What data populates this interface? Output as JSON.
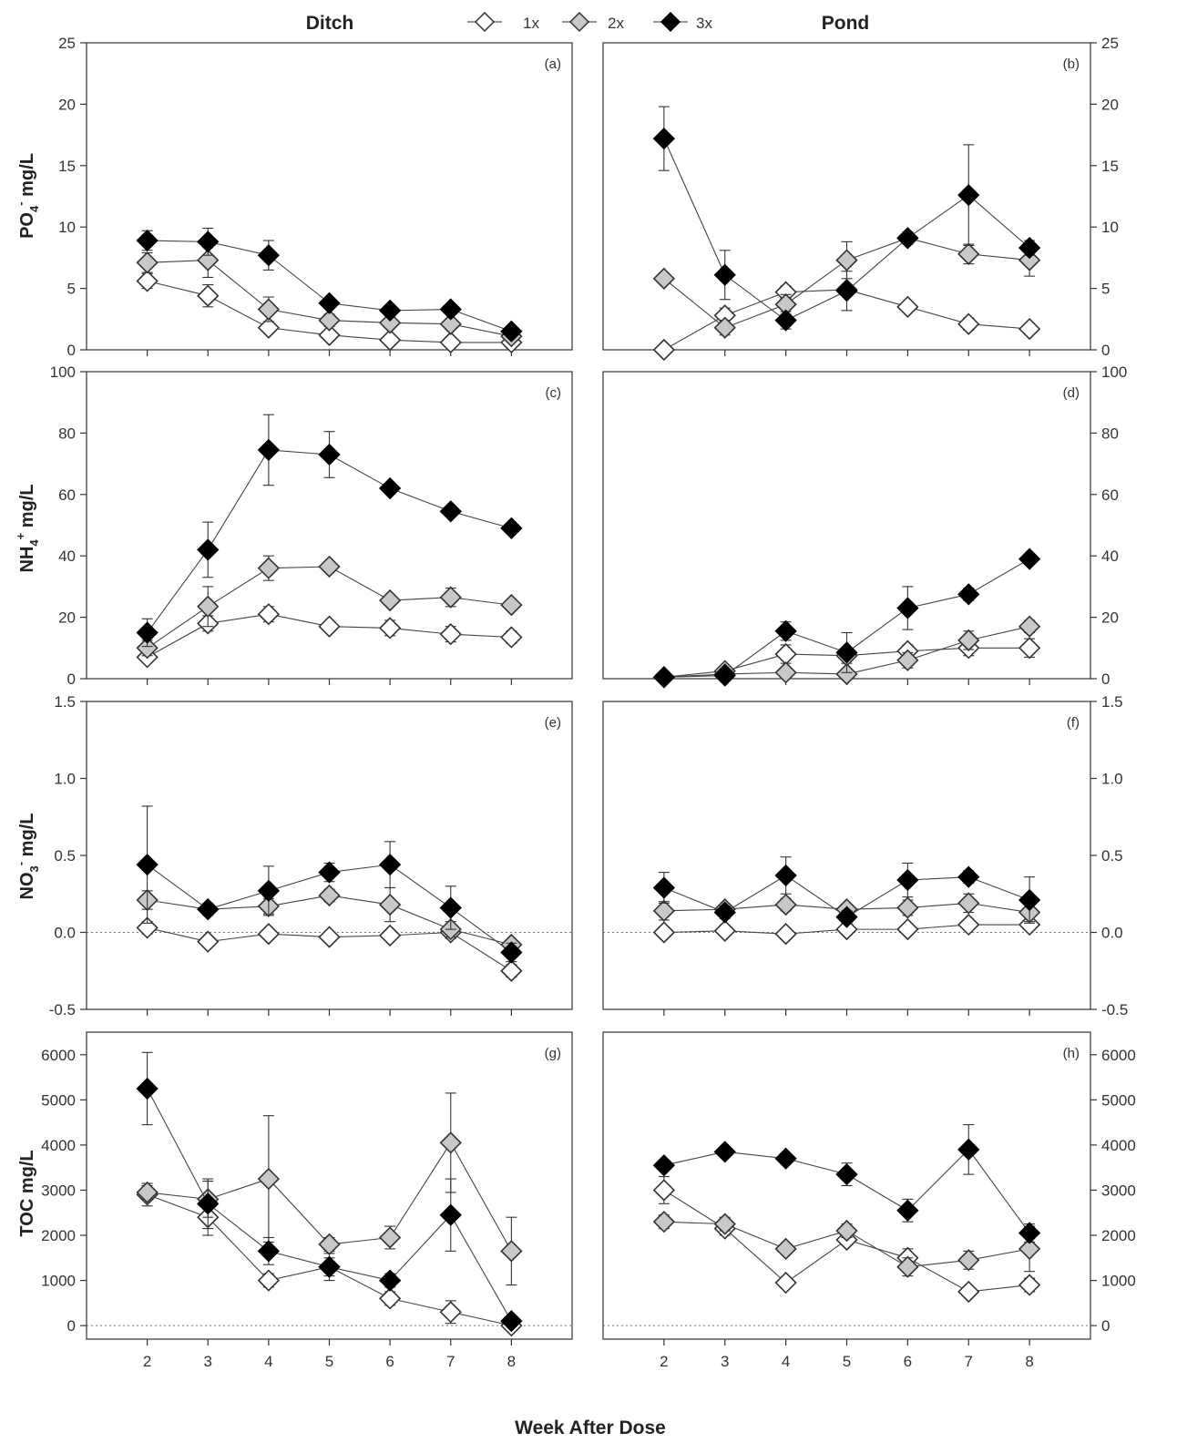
{
  "figure": {
    "titles": {
      "left": "Ditch",
      "right": "Pond"
    },
    "x_label": "Week After Dose",
    "legend": [
      {
        "label": "1x",
        "fill": "#ffffff"
      },
      {
        "label": "2x",
        "fill": "#c8c8c8"
      },
      {
        "label": "3x",
        "fill": "#000000"
      }
    ],
    "row_labels": [
      {
        "base": "PO",
        "sub": "4",
        "sup": "-",
        "unit": " mg/L"
      },
      {
        "base": "NH",
        "sub": "4",
        "sup": "+",
        "unit": " mg/L"
      },
      {
        "base": "NO",
        "sub": "3",
        "sup": "-",
        "unit": " mg/L"
      },
      {
        "base": "TOC",
        "sub": "",
        "sup": "",
        "unit": " mg/L"
      }
    ]
  },
  "chart_data": [
    {
      "type": "line",
      "panel": "(a)",
      "column": "Ditch",
      "x": [
        2,
        3,
        4,
        5,
        6,
        7,
        8
      ],
      "xlim": [
        1,
        9
      ],
      "ylim": [
        0,
        25
      ],
      "yticks": [
        "0",
        "5",
        "10",
        "15",
        "20",
        "25"
      ],
      "ytick_values": [
        0,
        5,
        10,
        15,
        20,
        25
      ],
      "series": [
        {
          "name": "1x",
          "values": [
            5.6,
            4.4,
            1.8,
            1.2,
            0.8,
            0.6,
            0.6
          ],
          "err": [
            0.6,
            0.9,
            0.4,
            0.3,
            0.2,
            0.2,
            0.2
          ]
        },
        {
          "name": "2x",
          "values": [
            7.1,
            7.3,
            3.3,
            2.4,
            2.2,
            2.1,
            1.1
          ],
          "err": [
            0.8,
            1.4,
            1.0,
            0.5,
            0.4,
            0.4,
            0.3
          ]
        },
        {
          "name": "3x",
          "values": [
            8.9,
            8.8,
            7.7,
            3.8,
            3.2,
            3.3,
            1.5
          ],
          "err": [
            0.8,
            1.1,
            1.2,
            0.4,
            0.4,
            0.4,
            0.3
          ]
        }
      ]
    },
    {
      "type": "line",
      "panel": "(b)",
      "column": "Pond",
      "x": [
        2,
        3,
        4,
        5,
        6,
        7,
        8
      ],
      "xlim": [
        1,
        9
      ],
      "ylim": [
        0,
        25
      ],
      "yticks": [
        "0",
        "5",
        "10",
        "15",
        "20",
        "25"
      ],
      "ytick_values": [
        0,
        5,
        10,
        15,
        20,
        25
      ],
      "series": [
        {
          "name": "1x",
          "values": [
            0.0,
            2.8,
            4.7,
            4.9,
            3.5,
            2.1,
            1.7
          ],
          "err": [
            0.2,
            0.6,
            0.5,
            0.4,
            0.4,
            0.5,
            0.3
          ]
        },
        {
          "name": "2x",
          "values": [
            5.8,
            1.8,
            3.7,
            7.3,
            9.1,
            7.8,
            7.3
          ],
          "err": [
            0.4,
            0.6,
            0.8,
            1.5,
            0.5,
            0.8,
            1.3
          ]
        },
        {
          "name": "3x",
          "values": [
            17.2,
            6.1,
            2.4,
            4.8,
            9.1,
            12.6,
            8.3
          ],
          "err": [
            2.6,
            2.0,
            0.7,
            1.6,
            0.4,
            4.1,
            0.6
          ]
        }
      ]
    },
    {
      "type": "line",
      "panel": "(c)",
      "column": "Ditch",
      "x": [
        2,
        3,
        4,
        5,
        6,
        7,
        8
      ],
      "xlim": [
        1,
        9
      ],
      "ylim": [
        0,
        100
      ],
      "yticks": [
        "0",
        "20",
        "40",
        "60",
        "80",
        "100"
      ],
      "ytick_values": [
        0,
        20,
        40,
        60,
        80,
        100
      ],
      "series": [
        {
          "name": "1x",
          "values": [
            7,
            18,
            21,
            17,
            16.5,
            14.5,
            13.5
          ],
          "err": [
            1.5,
            2.5,
            2.5,
            1.5,
            2.5,
            2.5,
            2.0
          ]
        },
        {
          "name": "2x",
          "values": [
            10,
            23.5,
            36,
            36.5,
            25.5,
            26.5,
            24
          ],
          "err": [
            2.5,
            6.5,
            4,
            1.5,
            1.5,
            3.0,
            1.5
          ]
        },
        {
          "name": "3x",
          "values": [
            15,
            42,
            74.5,
            73,
            62,
            54.5,
            49
          ],
          "err": [
            4.5,
            9.0,
            11.5,
            7.5,
            1.5,
            1.5,
            1.5
          ]
        }
      ]
    },
    {
      "type": "line",
      "panel": "(d)",
      "column": "Pond",
      "x": [
        2,
        3,
        4,
        5,
        6,
        7,
        8
      ],
      "xlim": [
        1,
        9
      ],
      "ylim": [
        0,
        100
      ],
      "yticks": [
        "0",
        "20",
        "40",
        "60",
        "80",
        "100"
      ],
      "ytick_values": [
        0,
        20,
        40,
        60,
        80,
        100
      ],
      "series": [
        {
          "name": "1x",
          "values": [
            0.5,
            2.5,
            8,
            7.5,
            9,
            10,
            10
          ],
          "err": [
            0.3,
            1.0,
            3.0,
            2.5,
            2.0,
            2.5,
            3.0
          ]
        },
        {
          "name": "2x",
          "values": [
            0.5,
            1.5,
            2,
            1.5,
            6,
            12.5,
            17
          ],
          "err": [
            0.3,
            0.8,
            1.0,
            0.8,
            2.5,
            3.0,
            2.0
          ]
        },
        {
          "name": "3x",
          "values": [
            0.5,
            1,
            15.5,
            8.5,
            23,
            27.5,
            39
          ],
          "err": [
            0.3,
            0.5,
            3.0,
            6.5,
            7.0,
            2.0,
            1.5
          ]
        }
      ]
    },
    {
      "type": "line",
      "panel": "(e)",
      "column": "Ditch",
      "x": [
        2,
        3,
        4,
        5,
        6,
        7,
        8
      ],
      "xlim": [
        1,
        9
      ],
      "ylim": [
        -0.5,
        1.5
      ],
      "yticks": [
        "-0.5",
        "0.0",
        "0.5",
        "1.0",
        "1.5"
      ],
      "ytick_values": [
        -0.5,
        0.0,
        0.5,
        1.0,
        1.5
      ],
      "zero_line": true,
      "series": [
        {
          "name": "1x",
          "values": [
            0.03,
            -0.06,
            -0.01,
            -0.03,
            -0.02,
            0.0,
            -0.25
          ],
          "err": [
            0.04,
            0.03,
            0.03,
            0.02,
            0.03,
            0.04,
            0.04
          ]
        },
        {
          "name": "2x",
          "values": [
            0.21,
            0.15,
            0.17,
            0.24,
            0.18,
            0.02,
            -0.08
          ],
          "err": [
            0.06,
            0.03,
            0.05,
            0.04,
            0.11,
            0.05,
            0.03
          ]
        },
        {
          "name": "3x",
          "values": [
            0.44,
            0.15,
            0.27,
            0.39,
            0.44,
            0.16,
            -0.13
          ],
          "err": [
            0.38,
            0.04,
            0.16,
            0.06,
            0.15,
            0.14,
            0.06
          ]
        }
      ]
    },
    {
      "type": "line",
      "panel": "(f)",
      "column": "Pond",
      "x": [
        2,
        3,
        4,
        5,
        6,
        7,
        8
      ],
      "xlim": [
        1,
        9
      ],
      "ylim": [
        -0.5,
        1.5
      ],
      "yticks": [
        "-0.5",
        "0.0",
        "0.5",
        "1.0",
        "1.5"
      ],
      "ytick_values": [
        -0.5,
        0.0,
        0.5,
        1.0,
        1.5
      ],
      "zero_line": true,
      "series": [
        {
          "name": "1x",
          "values": [
            0.0,
            0.01,
            -0.01,
            0.02,
            0.02,
            0.05,
            0.05
          ],
          "err": [
            0.02,
            0.02,
            0.02,
            0.02,
            0.02,
            0.03,
            0.02
          ]
        },
        {
          "name": "2x",
          "values": [
            0.14,
            0.15,
            0.18,
            0.15,
            0.16,
            0.19,
            0.13
          ],
          "err": [
            0.06,
            0.03,
            0.04,
            0.03,
            0.05,
            0.06,
            0.06
          ]
        },
        {
          "name": "3x",
          "values": [
            0.29,
            0.13,
            0.37,
            0.1,
            0.34,
            0.36,
            0.21
          ],
          "err": [
            0.1,
            0.04,
            0.12,
            0.04,
            0.11,
            0.04,
            0.15
          ]
        }
      ]
    },
    {
      "type": "line",
      "panel": "(g)",
      "column": "Ditch",
      "x": [
        2,
        3,
        4,
        5,
        6,
        7,
        8
      ],
      "xlim": [
        1,
        9
      ],
      "ylim": [
        -300,
        6500
      ],
      "yticks": [
        "0",
        "1000",
        "2000",
        "3000",
        "4000",
        "5000",
        "6000"
      ],
      "ytick_values": [
        0,
        1000,
        2000,
        3000,
        4000,
        5000,
        6000
      ],
      "zero_line": true,
      "series": [
        {
          "name": "1x",
          "values": [
            2900,
            2400,
            1000,
            1300,
            600,
            300,
            0
          ],
          "err": [
            250,
            400,
            150,
            200,
            150,
            250,
            80
          ]
        },
        {
          "name": "2x",
          "values": [
            2950,
            2800,
            3250,
            1800,
            1950,
            4050,
            1650
          ],
          "err": [
            150,
            400,
            1400,
            150,
            250,
            1100,
            750
          ]
        },
        {
          "name": "3x",
          "values": [
            5250,
            2700,
            1650,
            1300,
            1000,
            2450,
            100
          ],
          "err": [
            800,
            550,
            300,
            300,
            150,
            800,
            100
          ]
        }
      ]
    },
    {
      "type": "line",
      "panel": "(h)",
      "column": "Pond",
      "x": [
        2,
        3,
        4,
        5,
        6,
        7,
        8
      ],
      "xlim": [
        1,
        9
      ],
      "ylim": [
        -300,
        6500
      ],
      "yticks": [
        "0",
        "1000",
        "2000",
        "3000",
        "4000",
        "5000",
        "6000"
      ],
      "ytick_values": [
        0,
        1000,
        2000,
        3000,
        4000,
        5000,
        6000
      ],
      "zero_line": true,
      "series": [
        {
          "name": "1x",
          "values": [
            3000,
            2150,
            950,
            1900,
            1500,
            750,
            900
          ],
          "err": [
            300,
            150,
            100,
            100,
            200,
            100,
            150
          ]
        },
        {
          "name": "2x",
          "values": [
            2300,
            2250,
            1700,
            2100,
            1300,
            1450,
            1700
          ],
          "err": [
            150,
            150,
            100,
            150,
            200,
            200,
            500
          ]
        },
        {
          "name": "3x",
          "values": [
            3550,
            3850,
            3700,
            3350,
            2550,
            3900,
            2050
          ],
          "err": [
            100,
            100,
            100,
            250,
            250,
            550,
            200
          ]
        }
      ]
    }
  ]
}
